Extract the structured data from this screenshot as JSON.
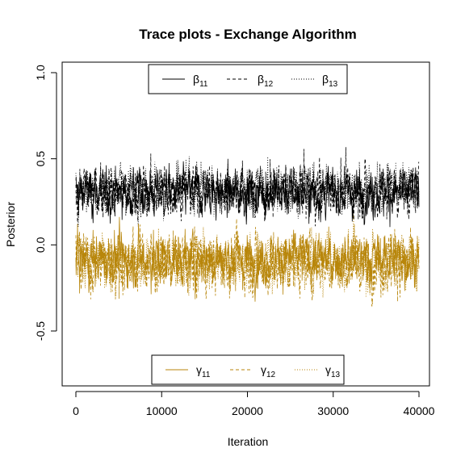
{
  "chart_data": {
    "type": "line",
    "title": "Trace plots - Exchange Algorithm",
    "xlabel": "Iteration",
    "ylabel": "Posterior",
    "xlim": [
      0,
      40000
    ],
    "ylim": [
      -0.8,
      1.05
    ],
    "x_ticks": [
      0,
      10000,
      20000,
      30000,
      40000
    ],
    "x_tick_labels": [
      "0",
      "10000",
      "20000",
      "30000",
      "40000"
    ],
    "y_ticks": [
      -0.5,
      0.0,
      0.5,
      1.0
    ],
    "y_tick_labels": [
      "-0.5",
      "0.0",
      "0.5",
      "1.0"
    ],
    "grid": false,
    "colors": {
      "beta": "#000000",
      "gamma": "#b8860b"
    },
    "legend_top": {
      "placement": "top-center",
      "entries": [
        {
          "symbol": "β",
          "sub": "11",
          "line": "solid"
        },
        {
          "symbol": "β",
          "sub": "12",
          "line": "dashed"
        },
        {
          "symbol": "β",
          "sub": "13",
          "line": "dotted"
        }
      ]
    },
    "legend_bottom": {
      "placement": "bottom-center",
      "entries": [
        {
          "symbol": "γ",
          "sub": "11",
          "line": "solid"
        },
        {
          "symbol": "γ",
          "sub": "12",
          "line": "dashed"
        },
        {
          "symbol": "γ",
          "sub": "13",
          "line": "dotted"
        }
      ]
    },
    "series": [
      {
        "group": "beta",
        "line": "solid",
        "mean": 0.3,
        "range": [
          0.1,
          0.7
        ]
      },
      {
        "group": "beta",
        "line": "dashed",
        "mean": 0.32,
        "range": [
          0.1,
          0.76
        ]
      },
      {
        "group": "beta",
        "line": "dotted",
        "mean": 0.33,
        "range": [
          0.1,
          0.72
        ]
      },
      {
        "group": "gamma",
        "line": "solid",
        "mean": -0.08,
        "range": [
          -0.45,
          0.22
        ]
      },
      {
        "group": "gamma",
        "line": "dashed",
        "mean": -0.1,
        "range": [
          -0.55,
          0.22
        ]
      },
      {
        "group": "gamma",
        "line": "dotted",
        "mean": -0.09,
        "range": [
          -0.5,
          0.2
        ]
      }
    ]
  }
}
